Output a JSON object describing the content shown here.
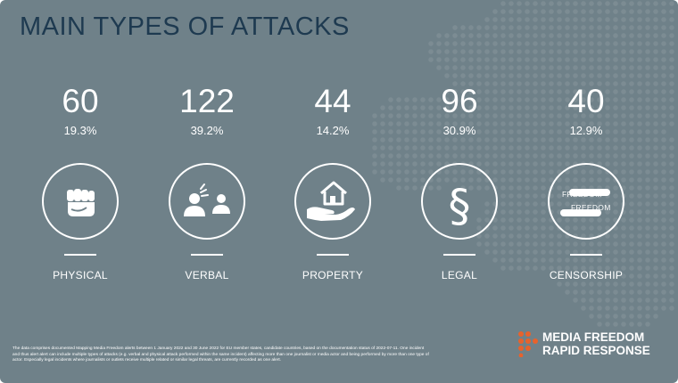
{
  "title": "MAIN TYPES OF ATTACKS",
  "colors": {
    "background": "#6f8189",
    "title": "#1e3a50",
    "text": "#ffffff",
    "brand_accent": "#e8622c"
  },
  "stats": [
    {
      "count": "60",
      "percent": "19.3%",
      "label": "PHYSICAL",
      "icon": "fist-icon"
    },
    {
      "count": "122",
      "percent": "39.2%",
      "label": "VERBAL",
      "icon": "people-talking-icon"
    },
    {
      "count": "44",
      "percent": "14.2%",
      "label": "PROPERTY",
      "icon": "house-in-hand-icon"
    },
    {
      "count": "96",
      "percent": "30.9%",
      "label": "LEGAL",
      "icon": "section-sign-icon"
    },
    {
      "count": "40",
      "percent": "12.9%",
      "label": "CENSORSHIP",
      "icon": "censored-freedom-icon"
    }
  ],
  "censorship_words": [
    "FREEDOM",
    "FREEDOM"
  ],
  "footnote": "The data comprises documented Mapping Media Freedom alerts between 1 January 2022 and 30 June 2022 for EU member states, candidate countries, based on the documentation status of 2022-07-11. One incident and thus alert alert can include multiple types of attacks (e.g. verbal and physical attack performed within the same incident) affecting more than one journalist or media actor and being performed by more than one type of actor. Especially legal incidents where journalists or outlets receive multiple related or similar legal threats, are currently recorded as one alert.",
  "brand": {
    "line1": "MEDIA FREEDOM",
    "line2": "RAPID RESPONSE",
    "logo": "mfrr-dots-logo"
  }
}
